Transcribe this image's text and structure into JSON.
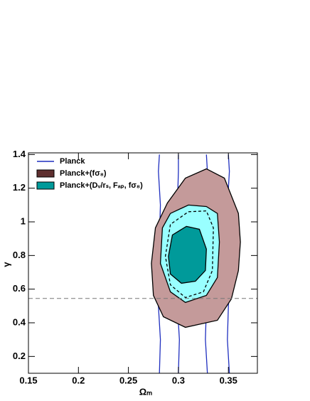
{
  "chart_data": {
    "type": "contour",
    "xlabel": "Ωₘ",
    "ylabel": "γ",
    "xlim": [
      0.15,
      0.379
    ],
    "ylim": [
      0.1,
      1.41
    ],
    "xticks": [
      0.15,
      0.2,
      0.25,
      0.3,
      0.35
    ],
    "yticks": [
      0.2,
      0.4,
      0.6,
      0.8,
      1,
      1.2,
      1.4
    ],
    "hline": 0.545,
    "legend": "top left",
    "series": [
      {
        "name": "Planck",
        "color": "#1f2fbf",
        "closed": false,
        "contours": [
          {
            "x": [
              0.281,
              0.282,
              0.28,
              0.283,
              0.281,
              0.282,
              0.28,
              0.281
            ],
            "y": [
              0.1,
              0.3,
              0.5,
              0.7,
              0.9,
              1.1,
              1.3,
              1.4
            ]
          },
          {
            "x": [
              0.3,
              0.301,
              0.299,
              0.3,
              0.301,
              0.299,
              0.3,
              0.3
            ],
            "y": [
              0.1,
              0.3,
              0.5,
              0.7,
              0.9,
              1.1,
              1.3,
              1.4
            ]
          },
          {
            "x": [
              0.329,
              0.327,
              0.328,
              0.33,
              0.328,
              0.327,
              0.329,
              0.328
            ],
            "y": [
              0.1,
              0.3,
              0.5,
              0.7,
              0.9,
              1.1,
              1.3,
              1.4
            ]
          },
          {
            "x": [
              0.351,
              0.349,
              0.35,
              0.352,
              0.35,
              0.349,
              0.351,
              0.35
            ],
            "y": [
              0.1,
              0.3,
              0.5,
              0.7,
              0.9,
              1.1,
              1.3,
              1.4
            ]
          }
        ]
      },
      {
        "name": "Planck+(fσ₈)",
        "color": "#5e2f2f",
        "closed": true,
        "contours": [
          {
            "fill": "#c49a9a",
            "x": [
              0.328,
              0.346,
              0.353,
              0.36,
              0.362,
              0.36,
              0.353,
              0.339,
              0.307,
              0.285,
              0.275,
              0.273,
              0.277,
              0.289,
              0.307
            ],
            "y": [
              1.315,
              1.26,
              1.155,
              1.05,
              0.88,
              0.71,
              0.542,
              0.415,
              0.373,
              0.436,
              0.563,
              0.753,
              0.964,
              1.112,
              1.26
            ]
          }
        ]
      },
      {
        "name": "Planck+(Dᵥ/rₛ, Fₐₚ, fσ₈)",
        "color": "#009a9a",
        "closed": true,
        "contours": [
          {
            "fill": "#99ffff",
            "x": [
              0.31,
              0.328,
              0.339,
              0.341,
              0.339,
              0.328,
              0.307,
              0.292,
              0.282,
              0.284,
              0.292
            ],
            "y": [
              1.1,
              1.091,
              1.05,
              0.88,
              0.669,
              0.563,
              0.521,
              0.584,
              0.753,
              0.964,
              1.05
            ]
          },
          {
            "fill": "#009a9a",
            "x": [
              0.308,
              0.321,
              0.328,
              0.327,
              0.317,
              0.303,
              0.292,
              0.29,
              0.294
            ],
            "y": [
              0.973,
              0.956,
              0.838,
              0.711,
              0.647,
              0.635,
              0.69,
              0.795,
              0.922
            ]
          },
          {
            "dashed": true,
            "x": [
              0.31,
              0.328,
              0.335,
              0.334,
              0.325,
              0.307,
              0.292,
              0.287,
              0.292
            ],
            "y": [
              1.06,
              1.065,
              0.964,
              0.711,
              0.584,
              0.55,
              0.626,
              0.795,
              0.985
            ]
          }
        ]
      }
    ]
  }
}
